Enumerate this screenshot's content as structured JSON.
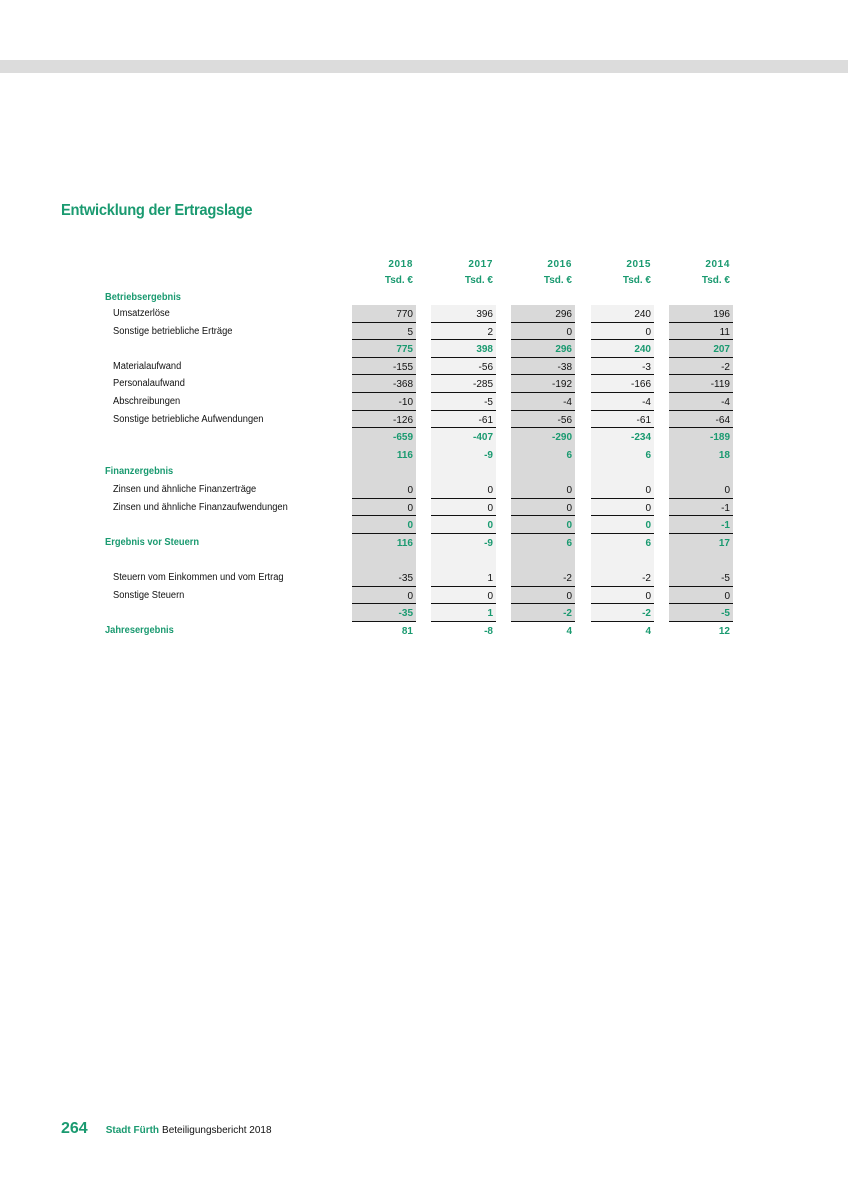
{
  "title": "Entwicklung der Ertragslage",
  "colors": {
    "accent": "#1a9a70",
    "column_dark": "#d9d9d9",
    "column_light": "#f2f2f2"
  },
  "table": {
    "years": [
      "2018",
      "2017",
      "2016",
      "2015",
      "2014"
    ],
    "unit": "Tsd. €",
    "rows": [
      {
        "label": "Betriebsergebnis",
        "type": "section"
      },
      {
        "label": "Umsatzerlöse",
        "type": "item",
        "values": [
          "770",
          "396",
          "296",
          "240",
          "196"
        ]
      },
      {
        "label": "Sonstige betriebliche Erträge",
        "type": "item",
        "values": [
          "5",
          "2",
          "0",
          "0",
          "11"
        ]
      },
      {
        "label": "",
        "type": "sum",
        "values": [
          "775",
          "398",
          "296",
          "240",
          "207"
        ]
      },
      {
        "label": "Materialaufwand",
        "type": "item",
        "values": [
          "-155",
          "-56",
          "-38",
          "-3",
          "-2"
        ]
      },
      {
        "label": "Personalaufwand",
        "type": "item",
        "values": [
          "-368",
          "-285",
          "-192",
          "-166",
          "-119"
        ]
      },
      {
        "label": "Abschreibungen",
        "type": "item",
        "values": [
          "-10",
          "-5",
          "-4",
          "-4",
          "-4"
        ]
      },
      {
        "label": "Sonstige betriebliche Aufwendungen",
        "type": "item",
        "values": [
          "-126",
          "-61",
          "-56",
          "-61",
          "-64"
        ]
      },
      {
        "label": "",
        "type": "sum",
        "values": [
          "-659",
          "-407",
          "-290",
          "-234",
          "-189"
        ]
      },
      {
        "label": "",
        "type": "result",
        "values": [
          "116",
          "-9",
          "6",
          "6",
          "18"
        ]
      },
      {
        "label": "Finanzergebnis",
        "type": "section"
      },
      {
        "label": "Zinsen und ähnliche Finanzerträge",
        "type": "item",
        "values": [
          "0",
          "0",
          "0",
          "0",
          "0"
        ]
      },
      {
        "label": "Zinsen und ähnliche Finanzaufwendungen",
        "type": "item",
        "values": [
          "0",
          "0",
          "0",
          "0",
          "-1"
        ]
      },
      {
        "label": "",
        "type": "sum",
        "values": [
          "0",
          "0",
          "0",
          "0",
          "-1"
        ]
      },
      {
        "label": "Ergebnis vor Steuern",
        "type": "result-head",
        "values": [
          "116",
          "-9",
          "6",
          "6",
          "17"
        ]
      },
      {
        "label": "",
        "type": "blank"
      },
      {
        "label": "Steuern vom Einkommen und vom Ertrag",
        "type": "item",
        "values": [
          "-35",
          "1",
          "-2",
          "-2",
          "-5"
        ]
      },
      {
        "label": "Sonstige Steuern",
        "type": "item",
        "values": [
          "0",
          "0",
          "0",
          "0",
          "0"
        ]
      },
      {
        "label": "",
        "type": "sum",
        "values": [
          "-35",
          "1",
          "-2",
          "-2",
          "-5"
        ]
      },
      {
        "label": "Jahresergebnis",
        "type": "result-head",
        "values": [
          "81",
          "-8",
          "4",
          "4",
          "12"
        ]
      }
    ]
  },
  "footer": {
    "page": "264",
    "brand": "Stadt Fürth",
    "text": "Beteiligungsbericht 2018"
  }
}
